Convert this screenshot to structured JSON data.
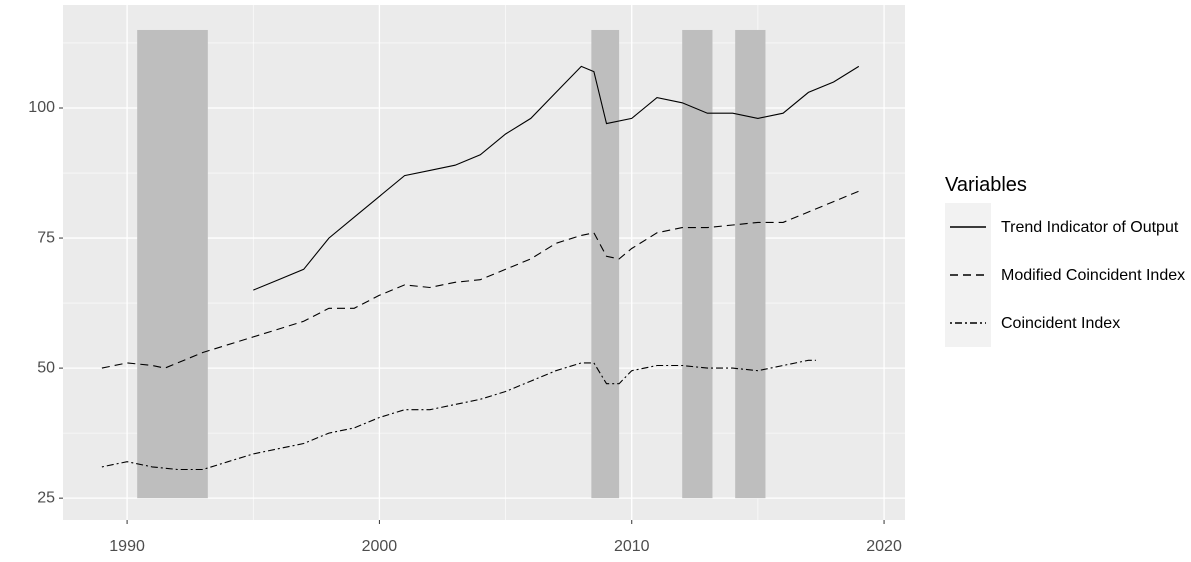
{
  "chart_data": {
    "type": "line",
    "legend_title": "Variables",
    "legend_position": "right",
    "panel_color": "#ebebeb",
    "grid": true,
    "xlim": [
      1987.46,
      2020.83
    ],
    "xticks": [
      1990,
      2000,
      2010,
      2020
    ],
    "ylim": [
      20.8,
      119.8
    ],
    "yticks": [
      25,
      50,
      75,
      100
    ],
    "shaded": {
      "color": "#bebebe",
      "periods": [
        {
          "xmin": 1990.4,
          "xmax": 1993.2,
          "ymin": 25,
          "ymax": 115
        },
        {
          "xmin": 2008.4,
          "xmax": 2009.5,
          "ymin": 25,
          "ymax": 115
        },
        {
          "xmin": 2012.0,
          "xmax": 2013.2,
          "ymin": 25,
          "ymax": 115
        },
        {
          "xmin": 2014.1,
          "xmax": 2015.3,
          "ymin": 25,
          "ymax": 115
        }
      ]
    },
    "series": [
      {
        "name": "Trend Indicator of Output",
        "color": "#000000",
        "dash": "solid",
        "x": [
          1995,
          1996,
          1997,
          1998,
          1999,
          2000,
          2001,
          2002,
          2003,
          2004,
          2005,
          2006,
          2007,
          2008,
          2008.5,
          2009,
          2010,
          2011,
          2012,
          2013,
          2014,
          2015,
          2016,
          2017,
          2018,
          2019
        ],
        "values": [
          65,
          67,
          69,
          75,
          79,
          83,
          87,
          88,
          89,
          91,
          95,
          98,
          103,
          108,
          107,
          97,
          98,
          102,
          101,
          99,
          99,
          98,
          99,
          103,
          105,
          108
        ]
      },
      {
        "name": "Modified Coincident Index",
        "color": "#000000",
        "dash": "dashed",
        "x": [
          1989,
          1990,
          1991,
          1991.5,
          1992,
          1993,
          1994,
          1995,
          1996,
          1997,
          1998,
          1999,
          2000,
          2001,
          2002,
          2003,
          2004,
          2005,
          2006,
          2007,
          2008,
          2008.5,
          2009,
          2009.5,
          2010,
          2011,
          2012,
          2013,
          2014,
          2015,
          2016,
          2017,
          2018,
          2019
        ],
        "values": [
          50,
          51,
          50.5,
          50,
          51,
          53,
          54.5,
          56,
          57.5,
          59,
          61.5,
          61.5,
          64,
          66,
          65.5,
          66.5,
          67,
          69,
          71,
          74,
          75.5,
          76,
          71.5,
          71,
          73,
          76,
          77,
          77,
          77.5,
          78,
          78,
          80,
          82,
          84
        ]
      },
      {
        "name": "Coincident Index",
        "color": "#000000",
        "dash": "dotdash",
        "x": [
          1989,
          1990,
          1991,
          1992,
          1993,
          1994,
          1995,
          1996,
          1997,
          1998,
          1999,
          2000,
          2001,
          2002,
          2003,
          2004,
          2005,
          2006,
          2007,
          2008,
          2008.5,
          2009,
          2009.5,
          2010,
          2011,
          2012,
          2013,
          2014,
          2015,
          2016,
          2017,
          2017.3
        ],
        "values": [
          31,
          32,
          31,
          30.5,
          30.5,
          32,
          33.5,
          34.5,
          35.5,
          37.5,
          38.5,
          40.5,
          42,
          42,
          43,
          44,
          45.5,
          47.5,
          49.5,
          51,
          51,
          47,
          47,
          49.5,
          50.5,
          50.5,
          50,
          50,
          49.5,
          50.5,
          51.5,
          51.5
        ]
      }
    ]
  }
}
